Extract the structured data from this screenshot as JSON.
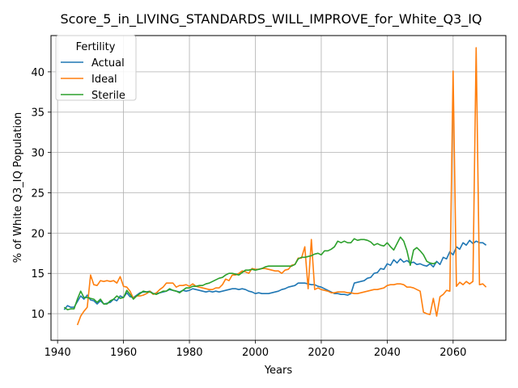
{
  "chart_data": {
    "type": "line",
    "title": "Score_5_in_LIVING_STANDARDS_WILL_IMPROVE_for_White_Q3_IQ",
    "xlabel": "Years",
    "ylabel": "% of White Q3_IQ Population",
    "xlim": [
      1938,
      2076
    ],
    "ylim": [
      6.7,
      44.5
    ],
    "xticks": [
      1940,
      1960,
      1980,
      2000,
      2020,
      2040,
      2060
    ],
    "yticks": [
      10,
      15,
      20,
      25,
      30,
      35,
      40
    ],
    "grid": true,
    "legend": {
      "title": "Fertility",
      "placement": "top-left"
    },
    "series": [
      {
        "name": "Actual",
        "color": "#1f77b4",
        "x": [
          1942,
          1943,
          1944,
          1945,
          1946,
          1947,
          1948,
          1949,
          1950,
          1951,
          1952,
          1953,
          1954,
          1955,
          1956,
          1957,
          1958,
          1959,
          1960,
          1961,
          1962,
          1963,
          1964,
          1965,
          1966,
          1967,
          1968,
          1969,
          1970,
          1971,
          1972,
          1973,
          1974,
          1975,
          1976,
          1977,
          1978,
          1979,
          1980,
          1981,
          1982,
          1983,
          1984,
          1985,
          1986,
          1987,
          1988,
          1989,
          1990,
          1991,
          1992,
          1993,
          1994,
          1995,
          1996,
          1997,
          1998,
          1999,
          2000,
          2001,
          2002,
          2003,
          2004,
          2005,
          2006,
          2007,
          2008,
          2009,
          2010,
          2011,
          2012,
          2013,
          2014,
          2015,
          2016,
          2017,
          2018,
          2019,
          2020,
          2021,
          2022,
          2023,
          2024,
          2025,
          2026,
          2027,
          2028,
          2029,
          2030,
          2031,
          2032,
          2033,
          2034,
          2035,
          2036,
          2037,
          2038,
          2039,
          2040,
          2041,
          2042,
          2043,
          2044,
          2045,
          2046,
          2047,
          2048,
          2049,
          2050,
          2051,
          2052,
          2053,
          2054,
          2055,
          2056,
          2057,
          2058,
          2059,
          2060,
          2061,
          2062,
          2063,
          2064,
          2065,
          2066,
          2067,
          2068,
          2069,
          2070
        ],
        "y": [
          10.5,
          11.0,
          10.8,
          10.8,
          11.5,
          12.2,
          11.8,
          12.3,
          11.7,
          11.6,
          11.2,
          11.6,
          11.2,
          11.3,
          11.4,
          11.8,
          11.6,
          12.2,
          12.0,
          12.6,
          12.1,
          12.0,
          12.3,
          12.6,
          12.7,
          12.7,
          12.8,
          12.5,
          12.5,
          12.6,
          12.7,
          12.8,
          13.0,
          12.9,
          12.8,
          12.7,
          12.9,
          12.8,
          12.9,
          13.1,
          13.0,
          12.9,
          12.8,
          12.7,
          12.8,
          12.7,
          12.8,
          12.7,
          12.8,
          12.9,
          13.0,
          13.1,
          13.1,
          13.0,
          13.1,
          13.0,
          12.8,
          12.7,
          12.5,
          12.6,
          12.5,
          12.5,
          12.5,
          12.6,
          12.7,
          12.8,
          13.0,
          13.1,
          13.3,
          13.4,
          13.5,
          13.8,
          13.8,
          13.8,
          13.7,
          13.6,
          13.6,
          13.4,
          13.3,
          13.1,
          12.9,
          12.7,
          12.5,
          12.5,
          12.4,
          12.4,
          12.3,
          12.5,
          13.8,
          13.9,
          14.0,
          14.1,
          14.4,
          14.5,
          15.0,
          15.1,
          15.6,
          15.5,
          16.2,
          16.0,
          16.7,
          16.3,
          16.8,
          16.4,
          16.6,
          16.3,
          16.4,
          16.1,
          16.2,
          16.0,
          15.9,
          16.2,
          15.8,
          16.5,
          16.1,
          17.0,
          16.8,
          17.7,
          17.3,
          18.3,
          18.0,
          18.8,
          18.5,
          19.1,
          18.7,
          19.0,
          18.8,
          18.8,
          18.5
        ]
      },
      {
        "name": "Ideal",
        "color": "#ff7f0e",
        "x": [
          1946,
          1947,
          1948,
          1949,
          1950,
          1951,
          1952,
          1953,
          1954,
          1955,
          1956,
          1957,
          1958,
          1959,
          1960,
          1961,
          1962,
          1963,
          1964,
          1965,
          1966,
          1967,
          1968,
          1969,
          1970,
          1971,
          1972,
          1973,
          1974,
          1975,
          1976,
          1977,
          1978,
          1979,
          1980,
          1981,
          1982,
          1983,
          1984,
          1985,
          1986,
          1987,
          1988,
          1989,
          1990,
          1991,
          1992,
          1993,
          1994,
          1995,
          1996,
          1997,
          1998,
          1999,
          2000,
          2001,
          2002,
          2003,
          2004,
          2005,
          2006,
          2007,
          2008,
          2009,
          2010,
          2011,
          2012,
          2013,
          2014,
          2015,
          2016,
          2017,
          2018,
          2019,
          2020,
          2021,
          2022,
          2023,
          2024,
          2025,
          2026,
          2027,
          2028,
          2029,
          2030,
          2031,
          2032,
          2033,
          2034,
          2035,
          2036,
          2037,
          2038,
          2039,
          2040,
          2041,
          2042,
          2043,
          2044,
          2045,
          2046,
          2047,
          2048,
          2049,
          2050,
          2051,
          2052,
          2053,
          2054,
          2055,
          2056,
          2057,
          2058,
          2059,
          2060,
          2061,
          2062,
          2063,
          2064,
          2065,
          2066,
          2067,
          2068,
          2069,
          2070
        ],
        "y": [
          8.6,
          9.7,
          10.3,
          10.8,
          14.8,
          13.6,
          13.5,
          14.1,
          14.0,
          14.1,
          14.0,
          14.1,
          13.8,
          14.6,
          13.4,
          13.3,
          12.8,
          11.9,
          12.2,
          12.2,
          12.3,
          12.5,
          12.8,
          12.4,
          12.6,
          13.0,
          13.3,
          13.8,
          13.8,
          13.8,
          13.3,
          13.5,
          13.5,
          13.6,
          13.4,
          13.7,
          13.4,
          13.3,
          13.2,
          13.1,
          13.0,
          13.0,
          13.2,
          13.2,
          13.6,
          14.3,
          14.1,
          14.8,
          14.8,
          15.0,
          15.3,
          15.2,
          15.0,
          15.6,
          15.5,
          15.5,
          15.6,
          15.6,
          15.5,
          15.4,
          15.3,
          15.3,
          15.0,
          15.4,
          15.5,
          16.0,
          16.1,
          16.9,
          16.9,
          18.3,
          13.1,
          19.2,
          13.0,
          13.2,
          13.0,
          12.9,
          12.8,
          12.6,
          12.6,
          12.7,
          12.7,
          12.7,
          12.6,
          12.6,
          12.5,
          12.5,
          12.6,
          12.7,
          12.8,
          12.9,
          13.0,
          13.0,
          13.1,
          13.2,
          13.5,
          13.6,
          13.6,
          13.7,
          13.7,
          13.6,
          13.3,
          13.3,
          13.2,
          13.0,
          12.8,
          10.2,
          10.0,
          9.9,
          11.9,
          9.7,
          12.1,
          12.4,
          12.9,
          12.8,
          40.1,
          13.4,
          13.9,
          13.6,
          14.0,
          13.7,
          14.0,
          43.0,
          13.6,
          13.7,
          13.3
        ]
      },
      {
        "name": "Sterile",
        "color": "#2ca02c",
        "x": [
          1942,
          1943,
          1944,
          1945,
          1946,
          1947,
          1948,
          1949,
          1950,
          1951,
          1952,
          1953,
          1954,
          1955,
          1956,
          1957,
          1958,
          1959,
          1960,
          1961,
          1962,
          1963,
          1964,
          1965,
          1966,
          1967,
          1968,
          1969,
          1970,
          1971,
          1972,
          1973,
          1974,
          1975,
          1976,
          1977,
          1978,
          1979,
          1980,
          1981,
          1982,
          1983,
          1984,
          1985,
          1986,
          1987,
          1988,
          1989,
          1990,
          1991,
          1992,
          1993,
          1994,
          1995,
          1996,
          1997,
          1998,
          1999,
          2000,
          2001,
          2002,
          2003,
          2004,
          2005,
          2006,
          2007,
          2008,
          2009,
          2010,
          2011,
          2012,
          2013,
          2014,
          2015,
          2016,
          2017,
          2018,
          2019,
          2020,
          2021,
          2022,
          2023,
          2024,
          2025,
          2026,
          2027,
          2028,
          2029,
          2030,
          2031,
          2032,
          2033,
          2034,
          2035,
          2036,
          2037,
          2038,
          2039,
          2040,
          2041,
          2042,
          2043,
          2044,
          2045,
          2046,
          2047,
          2048,
          2049,
          2050,
          2051,
          2052,
          2053,
          2054,
          2055
        ],
        "y": [
          10.8,
          10.5,
          10.6,
          10.6,
          11.8,
          12.8,
          12.0,
          12.0,
          11.9,
          11.8,
          11.4,
          11.8,
          11.2,
          11.2,
          11.6,
          11.8,
          12.2,
          11.9,
          12.0,
          12.9,
          12.4,
          11.8,
          12.2,
          12.5,
          12.8,
          12.7,
          12.7,
          12.5,
          12.4,
          12.6,
          12.8,
          12.8,
          13.1,
          12.9,
          12.8,
          12.6,
          12.9,
          13.2,
          13.2,
          13.4,
          13.4,
          13.5,
          13.5,
          13.7,
          13.8,
          14.0,
          14.2,
          14.4,
          14.5,
          14.8,
          15.0,
          15.0,
          14.9,
          14.8,
          15.1,
          15.4,
          15.4,
          15.5,
          15.4,
          15.5,
          15.6,
          15.8,
          15.9,
          15.9,
          15.9,
          15.9,
          15.9,
          15.9,
          15.9,
          15.9,
          16.1,
          16.8,
          17.0,
          17.0,
          17.1,
          17.2,
          17.4,
          17.5,
          17.3,
          17.8,
          17.8,
          18.0,
          18.3,
          19.0,
          18.8,
          19.0,
          18.8,
          18.8,
          19.3,
          19.1,
          19.2,
          19.2,
          19.1,
          18.9,
          18.5,
          18.7,
          18.5,
          18.4,
          18.8,
          18.3,
          17.9,
          18.7,
          19.5,
          19.0,
          17.8,
          16.0,
          17.9,
          18.2,
          17.8,
          17.3,
          16.5,
          16.3,
          16.2,
          16.4
        ]
      }
    ]
  }
}
